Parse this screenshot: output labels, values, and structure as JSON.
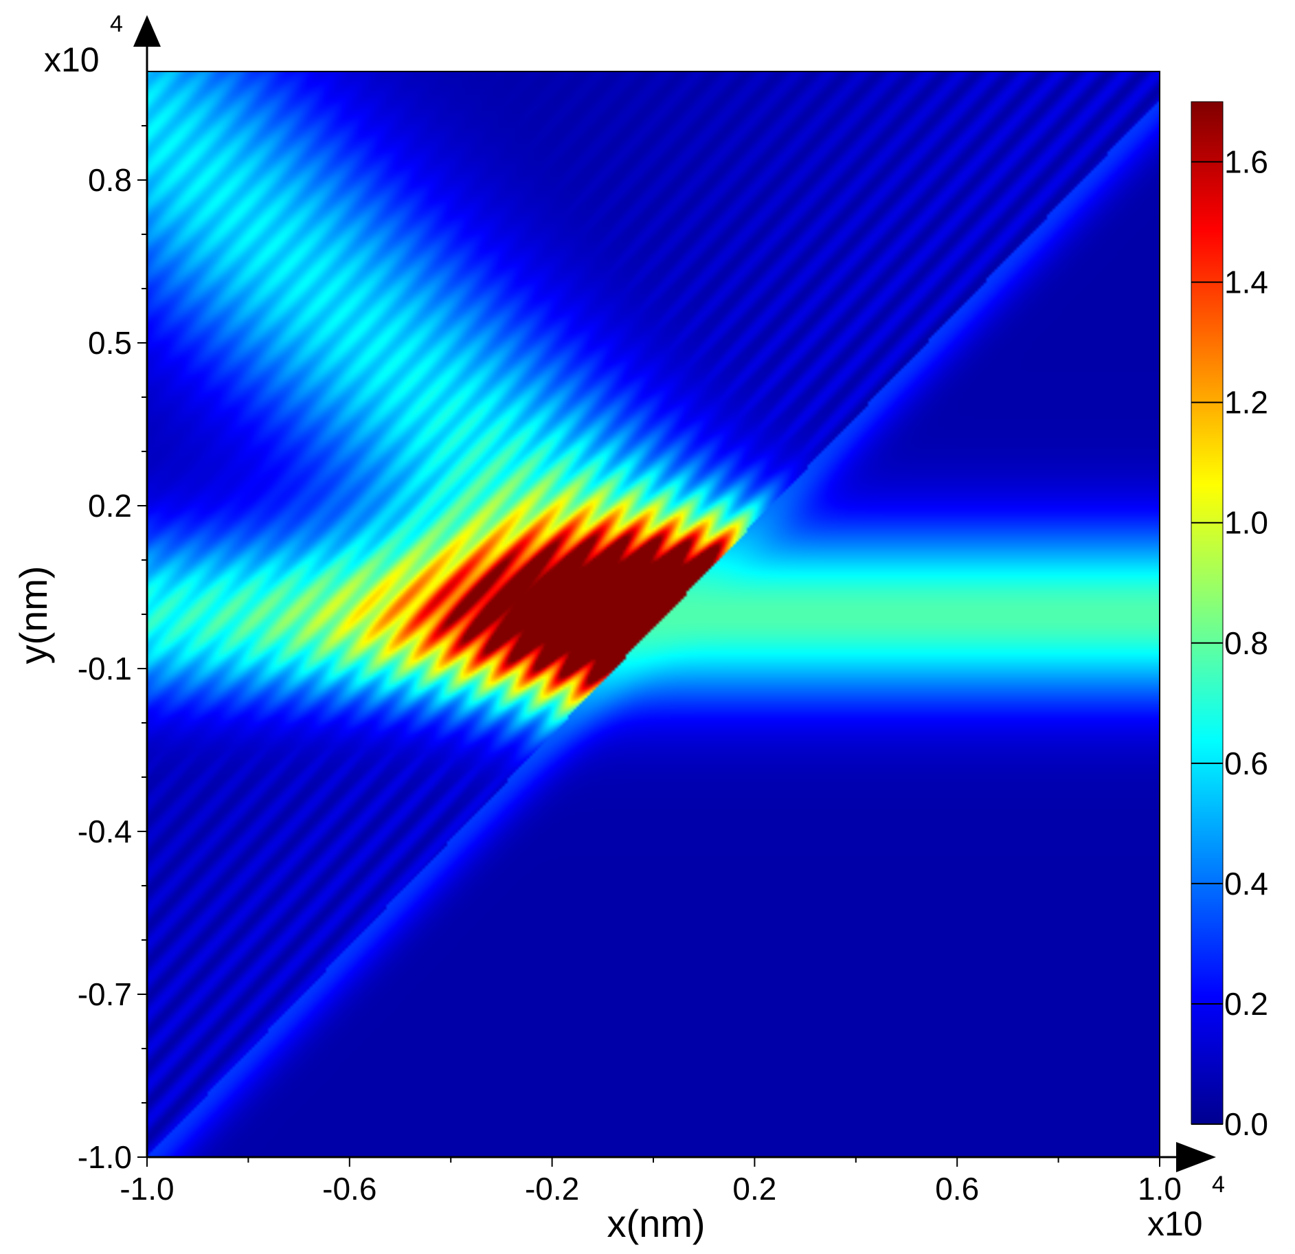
{
  "chart_data": {
    "type": "heatmap",
    "title": "",
    "xlabel": "x(nm)",
    "ylabel": "y(nm)",
    "x_multiplier": {
      "base": "x10",
      "exponent": "4"
    },
    "y_multiplier": {
      "base": "x10",
      "exponent": "4"
    },
    "xlim": [
      -1.0,
      1.0
    ],
    "ylim": [
      -1.0,
      1.0
    ],
    "x_ticks": [
      {
        "value": -1.0,
        "label": "-1.0"
      },
      {
        "value": -0.6,
        "label": "-0.6"
      },
      {
        "value": -0.2,
        "label": "-0.2"
      },
      {
        "value": 0.2,
        "label": "0.2"
      },
      {
        "value": 0.6,
        "label": "0.6"
      },
      {
        "value": 1.0,
        "label": "1.0"
      }
    ],
    "y_ticks": [
      {
        "value": -1.0,
        "label": "-1.0"
      },
      {
        "value": -0.7,
        "label": "-0.7"
      },
      {
        "value": -0.4,
        "label": "-0.4"
      },
      {
        "value": -0.1,
        "label": "-0.1"
      },
      {
        "value": 0.2,
        "label": "0.2"
      },
      {
        "value": 0.5,
        "label": "0.5"
      },
      {
        "value": 0.8,
        "label": "0.8"
      }
    ],
    "colorbar": {
      "range": [
        0.0,
        1.7
      ],
      "colormap": "jet",
      "ticks": [
        {
          "value": 0.0,
          "label": "0.0"
        },
        {
          "value": 0.2,
          "label": "0.2"
        },
        {
          "value": 0.4,
          "label": "0.4"
        },
        {
          "value": 0.6,
          "label": "0.6"
        },
        {
          "value": 0.8,
          "label": "0.8"
        },
        {
          "value": 1.0,
          "label": "1.0"
        },
        {
          "value": 1.2,
          "label": "1.2"
        },
        {
          "value": 1.4,
          "label": "1.4"
        },
        {
          "value": 1.6,
          "label": "1.6"
        }
      ]
    },
    "field": {
      "incident_beam": {
        "center_y": 0.0,
        "peak": 0.72,
        "direction": "horizontal, along +x"
      },
      "reflected_beam": {
        "direction": "diagonal, toward upper-left",
        "peak": 0.65
      },
      "interface_line": {
        "from": [
          -1.0,
          -1.0
        ],
        "to": [
          0.95,
          0.9
        ]
      },
      "interference_max": 1.7,
      "interference_max_location": [
        0.0,
        0.0
      ],
      "background": 0.05
    }
  }
}
